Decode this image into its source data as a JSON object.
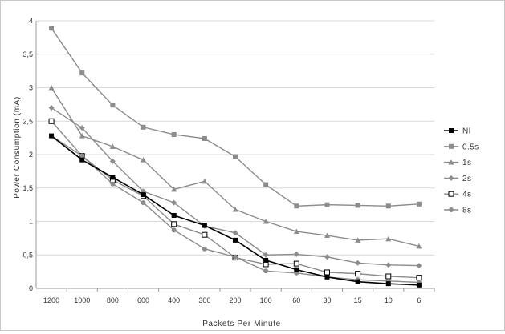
{
  "chart_data": {
    "type": "line",
    "title": "",
    "xlabel": "Packets Per Minute",
    "ylabel": "Power Consumption (mA)",
    "categories": [
      "1200",
      "1000",
      "800",
      "600",
      "400",
      "300",
      "200",
      "100",
      "60",
      "30",
      "15",
      "10",
      "6"
    ],
    "ylim": [
      0,
      4
    ],
    "yticks": [
      "0",
      "0,5",
      "1",
      "1,5",
      "2",
      "2,5",
      "3",
      "3,5",
      "4"
    ],
    "grid": true,
    "legend_position": "right",
    "series": [
      {
        "name": "NI",
        "color": "#000000",
        "marker": "square-filled",
        "values": [
          2.28,
          1.92,
          1.66,
          1.4,
          1.09,
          0.94,
          0.72,
          0.42,
          0.28,
          0.17,
          0.1,
          0.07,
          0.05
        ]
      },
      {
        "name": "0.5s",
        "color": "#8c8c8c",
        "marker": "square-filled",
        "values": [
          3.89,
          3.22,
          2.74,
          2.41,
          2.3,
          2.24,
          1.97,
          1.55,
          1.23,
          1.25,
          1.24,
          1.23,
          1.26
        ]
      },
      {
        "name": "1s",
        "color": "#8c8c8c",
        "marker": "triangle",
        "values": [
          3.0,
          2.28,
          2.12,
          1.92,
          1.48,
          1.6,
          1.18,
          1.0,
          0.85,
          0.79,
          0.72,
          0.74,
          0.63
        ]
      },
      {
        "name": "2s",
        "color": "#8c8c8c",
        "marker": "diamond",
        "values": [
          2.7,
          2.4,
          1.9,
          1.45,
          1.28,
          0.93,
          0.83,
          0.5,
          0.51,
          0.47,
          0.38,
          0.35,
          0.34
        ]
      },
      {
        "name": "4s",
        "color": "#8c8c8c",
        "marker": "square-open",
        "values": [
          2.5,
          1.98,
          1.62,
          1.38,
          0.96,
          0.8,
          0.46,
          0.36,
          0.37,
          0.24,
          0.22,
          0.18,
          0.16
        ]
      },
      {
        "name": "8s",
        "color": "#8c8c8c",
        "marker": "circle",
        "values": [
          2.28,
          1.98,
          1.56,
          1.28,
          0.87,
          0.59,
          0.47,
          0.26,
          0.23,
          0.17,
          0.13,
          0.11,
          0.09
        ]
      }
    ]
  }
}
